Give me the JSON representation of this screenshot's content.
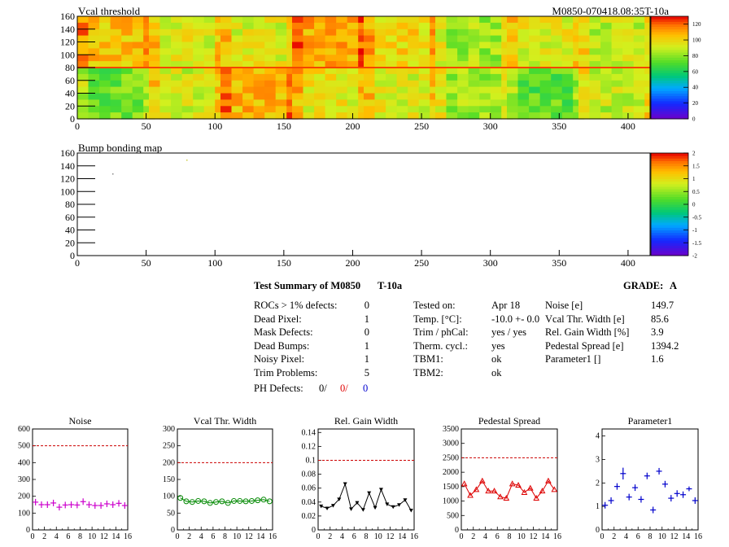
{
  "maps": {
    "module_id": "M0850-070418.08:35T-10a",
    "vcal": {
      "title": "Vcal threshold",
      "x_ticks": [
        "0",
        "50",
        "100",
        "150",
        "200",
        "250",
        "300",
        "350",
        "400"
      ],
      "y_ticks": [
        "0",
        "20",
        "40",
        "60",
        "80",
        "100",
        "120",
        "140",
        "160"
      ],
      "z_ticks": [
        "0",
        "20",
        "40",
        "60",
        "80",
        "100",
        "120"
      ],
      "z_range": [
        0,
        130
      ],
      "x_range": [
        0,
        416
      ],
      "y_range": [
        0,
        160
      ]
    },
    "bump": {
      "title": "Bump bonding map",
      "x_ticks": [
        "0",
        "50",
        "100",
        "150",
        "200",
        "250",
        "300",
        "350",
        "400"
      ],
      "y_ticks": [
        "0",
        "20",
        "40",
        "60",
        "80",
        "100",
        "120",
        "140",
        "160"
      ],
      "z_ticks": [
        "-2",
        "-1.5",
        "-1",
        "-0.5",
        "0",
        "0.5",
        "1",
        "1.5",
        "2"
      ],
      "z_range": [
        -2,
        2
      ],
      "x_range": [
        0,
        416
      ],
      "y_range": [
        0,
        160
      ]
    }
  },
  "summary": {
    "title": "Test Summary of M0850",
    "temp_label": "T-10a",
    "grade_label": "GRADE:",
    "grade": "A",
    "col1": [
      {
        "label": "ROCs > 1% defects:",
        "value": "0"
      },
      {
        "label": "Dead Pixel:",
        "value": "1"
      },
      {
        "label": "Mask Defects:",
        "value": "0"
      },
      {
        "label": "Dead Bumps:",
        "value": "1"
      },
      {
        "label": "Noisy Pixel:",
        "value": "1"
      },
      {
        "label": "Trim Problems:",
        "value": "5"
      }
    ],
    "ph_defects": {
      "label": "PH Defects:",
      "v1": "0/",
      "v2": "0/",
      "v3": "0"
    },
    "col2": [
      {
        "label": "Tested on:",
        "value": "Apr 18"
      },
      {
        "label": "Temp. [°C]:",
        "value": "-10.0 +- 0.0"
      },
      {
        "label": "Trim / phCal:",
        "value": "yes / yes"
      },
      {
        "label": "Therm. cycl.:",
        "value": "yes"
      },
      {
        "label": "TBM1:",
        "value": "ok"
      },
      {
        "label": "TBM2:",
        "value": "ok"
      }
    ],
    "col3": [
      {
        "label": "Noise [e]",
        "value": "149.7"
      },
      {
        "label": "Vcal Thr. Width [e]",
        "value": "85.6"
      },
      {
        "label": "Rel. Gain Width [%]",
        "value": "3.9"
      },
      {
        "label": "Pedestal Spread [e]",
        "value": "1394.2"
      },
      {
        "label": "Parameter1 []",
        "value": "1.6"
      }
    ]
  },
  "chart_data": [
    {
      "type": "scatter",
      "title": "Noise",
      "x": [
        0,
        1,
        2,
        3,
        4,
        5,
        6,
        7,
        8,
        9,
        10,
        11,
        12,
        13,
        14,
        15
      ],
      "values": [
        165,
        150,
        150,
        160,
        135,
        148,
        150,
        148,
        168,
        150,
        145,
        145,
        155,
        150,
        158,
        145
      ],
      "color": "#cc00cc",
      "marker": "cross",
      "ylim": [
        0,
        600
      ],
      "yticks": [
        0,
        100,
        200,
        300,
        400,
        500,
        600
      ],
      "xticks": [
        0,
        2,
        4,
        6,
        8,
        10,
        12,
        14,
        16
      ],
      "limit": 500,
      "legend": "none",
      "grid": false
    },
    {
      "type": "line",
      "title": "Vcal Thr. Width",
      "x": [
        0,
        1,
        2,
        3,
        4,
        5,
        6,
        7,
        8,
        9,
        10,
        11,
        12,
        13,
        14,
        15
      ],
      "values": [
        95,
        85,
        83,
        86,
        85,
        80,
        83,
        85,
        80,
        86,
        86,
        85,
        86,
        88,
        90,
        85
      ],
      "color": "#008800",
      "marker": "circle",
      "ylim": [
        0,
        300
      ],
      "yticks": [
        0,
        50,
        100,
        150,
        200,
        250,
        300
      ],
      "xticks": [
        0,
        2,
        4,
        6,
        8,
        10,
        12,
        14,
        16
      ],
      "limit": 200,
      "legend": "none",
      "grid": false
    },
    {
      "type": "line",
      "title": "Rel. Gain Width",
      "x": [
        0,
        1,
        2,
        3,
        4,
        5,
        6,
        7,
        8,
        9,
        10,
        11,
        12,
        13,
        14,
        15
      ],
      "values": [
        0.034,
        0.031,
        0.035,
        0.044,
        0.066,
        0.03,
        0.039,
        0.029,
        0.053,
        0.032,
        0.058,
        0.037,
        0.033,
        0.036,
        0.043,
        0.028
      ],
      "color": "#000000",
      "marker": "triangle-down",
      "ylim": [
        0,
        0.145
      ],
      "yticks": [
        0,
        0.02,
        0.04,
        0.06,
        0.08,
        0.1,
        0.12,
        0.14
      ],
      "ytick_labels": [
        "0",
        "0.02",
        "0.04",
        "0.06",
        "0.08",
        "0.1",
        "0.12",
        "0.14"
      ],
      "xticks": [
        0,
        2,
        4,
        6,
        8,
        10,
        12,
        14,
        16
      ],
      "limit": 0.1,
      "legend": "none",
      "grid": false
    },
    {
      "type": "line",
      "title": "Pedestal Spread",
      "x": [
        0,
        1,
        2,
        3,
        4,
        5,
        6,
        7,
        8,
        9,
        10,
        11,
        12,
        13,
        14,
        15
      ],
      "values": [
        1600,
        1200,
        1400,
        1700,
        1350,
        1350,
        1150,
        1100,
        1600,
        1550,
        1300,
        1450,
        1100,
        1350,
        1700,
        1400
      ],
      "color": "#dd0000",
      "marker": "triangle-up",
      "ylim": [
        0,
        3500
      ],
      "yticks": [
        0,
        500,
        1000,
        1500,
        2000,
        2500,
        3000,
        3500
      ],
      "xticks": [
        0,
        2,
        4,
        6,
        8,
        10,
        12,
        14,
        16
      ],
      "limit": 2500,
      "legend": "none",
      "grid": false
    },
    {
      "type": "scatter",
      "title": "Parameter1",
      "x": [
        0,
        1,
        2,
        3,
        4,
        5,
        6,
        7,
        8,
        9,
        10,
        11,
        12,
        13,
        14,
        15
      ],
      "values": [
        1.05,
        1.25,
        1.85,
        2.4,
        1.4,
        1.8,
        1.3,
        2.3,
        0.85,
        2.5,
        1.95,
        1.35,
        1.55,
        1.5,
        1.75,
        1.25
      ],
      "errors": [
        0,
        0,
        0,
        0.25,
        0,
        0,
        0,
        0,
        0,
        0,
        0,
        0,
        0,
        0,
        0.1,
        0
      ],
      "color": "#0000cc",
      "marker": "cross",
      "ylim": [
        0,
        4.3
      ],
      "yticks": [
        0,
        1,
        2,
        3,
        4
      ],
      "xticks": [
        0,
        2,
        4,
        6,
        8,
        10,
        12,
        14,
        16
      ],
      "limit": null,
      "legend": "none",
      "grid": false
    }
  ]
}
